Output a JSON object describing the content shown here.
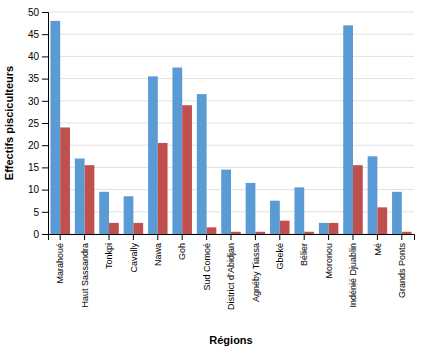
{
  "chart_data": {
    "type": "bar",
    "categories": [
      "Marahoué",
      "Haut Sassandra",
      "Tonkpi",
      "Cavally",
      "Nawa",
      "Goh",
      "Sud Comoé",
      "District d’Abidjan",
      "Agnéby Tiassa",
      "Gbeké",
      "Bélier",
      "Moronou",
      "Indénié Djuablin",
      "Mé",
      "Grands Ponts"
    ],
    "series": [
      {
        "color": "#5B9BD5",
        "values": [
          48,
          17,
          9.5,
          8.5,
          35.5,
          37.5,
          31.5,
          14.5,
          11.5,
          7.5,
          10.5,
          2.5,
          47,
          17.5,
          9.5
        ]
      },
      {
        "color": "#C0504D",
        "values": [
          24,
          15.5,
          2.5,
          2.5,
          20.5,
          29,
          1.5,
          0.5,
          0.5,
          3,
          0.5,
          2.5,
          15.5,
          6,
          0.5
        ]
      }
    ],
    "xlabel": "Régions",
    "ylabel": "Effectifs pisciculteurs",
    "ylim": [
      0,
      50
    ],
    "yticks": [
      0,
      5,
      10,
      15,
      20,
      25,
      30,
      35,
      40,
      45,
      50
    ],
    "grid": true
  }
}
